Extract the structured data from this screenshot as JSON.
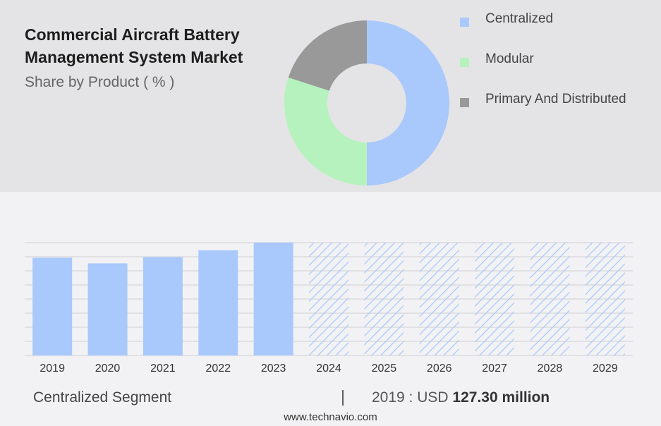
{
  "header": {
    "title": "Commercial Aircraft Battery Management System Market",
    "subtitle": "Share by Product ( % )"
  },
  "colors": {
    "centralized": "#a9c8fc",
    "modular": "#b6f2bd",
    "primary_distributed": "#999999",
    "hatch": "#a9c8fc",
    "grid": "#d0d0d4"
  },
  "chart_data": [
    {
      "type": "pie",
      "variant": "donut",
      "title": "Share by Product ( % )",
      "series": [
        {
          "name": "Centralized",
          "value": 50,
          "color": "#a9c8fc"
        },
        {
          "name": "Modular",
          "value": 30,
          "color": "#b6f2bd"
        },
        {
          "name": "Primary And Distributed",
          "value": 20,
          "color": "#999999"
        }
      ],
      "legend_position": "right"
    },
    {
      "type": "bar",
      "title": "",
      "categories": [
        "2019",
        "2020",
        "2021",
        "2022",
        "2023",
        "2024",
        "2025",
        "2026",
        "2027",
        "2028",
        "2029"
      ],
      "values": [
        127.3,
        120.0,
        128.0,
        137.0,
        147.0,
        null,
        null,
        null,
        null,
        null,
        null
      ],
      "forecast_categories": [
        "2024",
        "2025",
        "2026",
        "2027",
        "2028",
        "2029"
      ],
      "ylim": [
        0,
        147
      ],
      "grid": true,
      "color": "#a9c8fc"
    }
  ],
  "legend": {
    "items": [
      "Centralized",
      "Modular",
      "Primary And Distributed"
    ]
  },
  "footer": {
    "segment_label": "Centralized Segment",
    "divider": "|",
    "stat_prefix": "2019 : USD",
    "stat_value": "127.30 million",
    "source": "www.technavio.com"
  }
}
